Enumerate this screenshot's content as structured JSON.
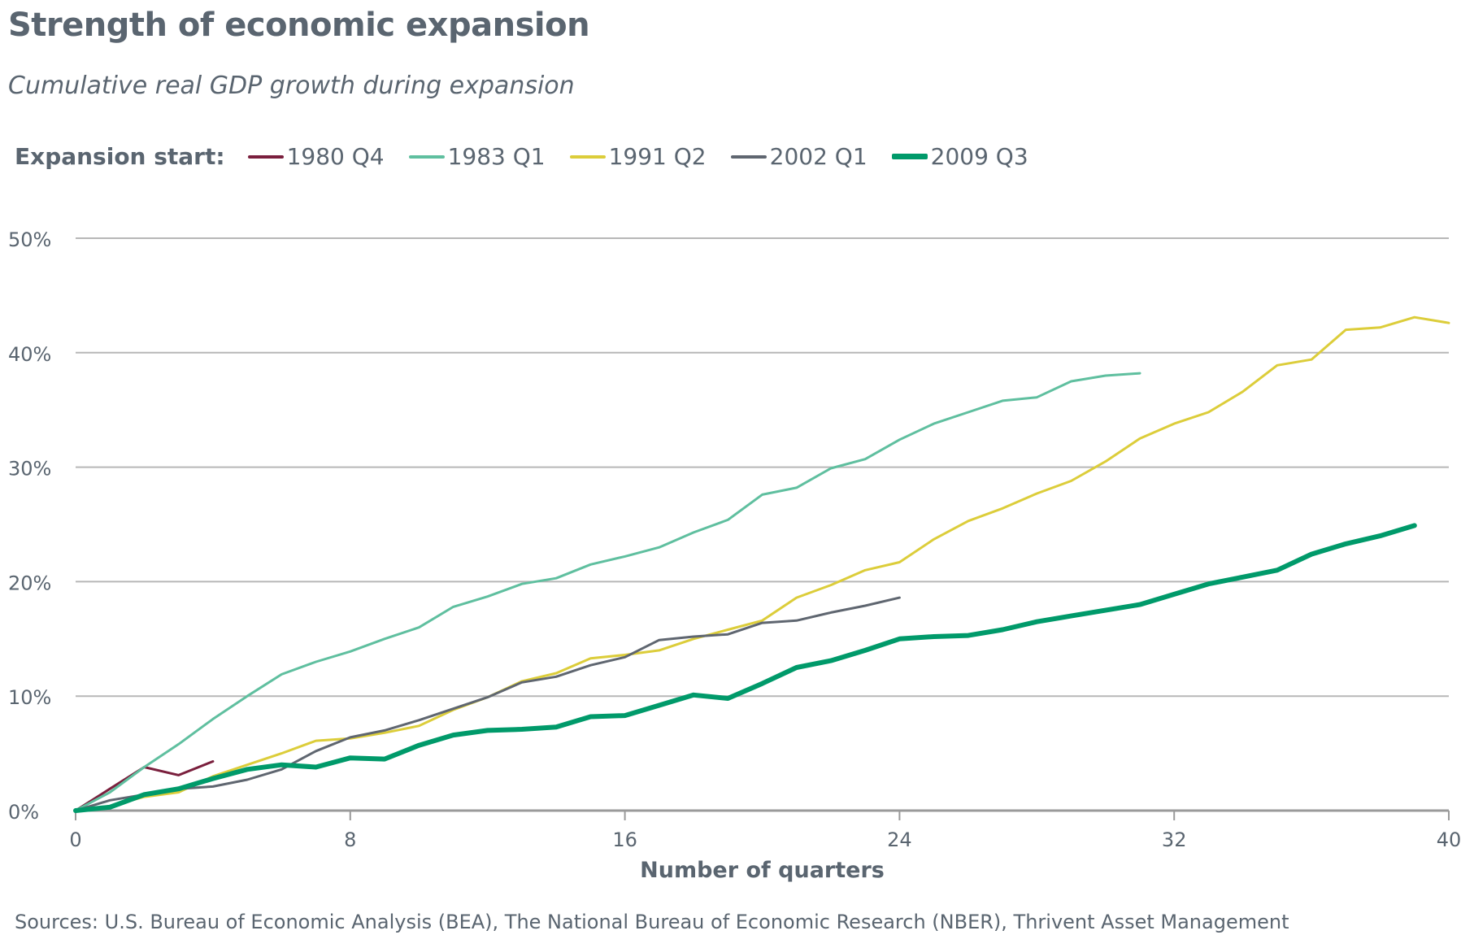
{
  "title": "Strength of economic expansion",
  "subtitle": "Cumulative real GDP growth during expansion",
  "legend_title": "Expansion start:",
  "source": "Sources: U.S. Bureau of Economic Analysis (BEA), The National Bureau of Economic Research (NBER), Thrivent Asset Management",
  "colors": {
    "grid": "#b7b7b7",
    "axis": "#9a9a9a",
    "text": "#5a6570"
  },
  "chart_data": {
    "type": "line",
    "xlabel": "Number of quarters",
    "ylabel": "",
    "xlim": [
      0,
      40
    ],
    "ylim": [
      0,
      50
    ],
    "x_ticks": [
      0,
      8,
      16,
      24,
      32,
      40
    ],
    "y_ticks": [
      0,
      10,
      20,
      30,
      40,
      50
    ],
    "y_tick_labels": [
      "0%",
      "10%",
      "20%",
      "30%",
      "40%",
      "50%"
    ],
    "grid": true,
    "legend_position": "top",
    "series": [
      {
        "name": "1980 Q4",
        "color": "#7a1f3d",
        "width": 3,
        "values": [
          [
            0,
            0
          ],
          [
            1,
            1.9
          ],
          [
            2,
            3.8
          ],
          [
            3,
            3.1
          ],
          [
            4,
            4.3
          ]
        ]
      },
      {
        "name": "1983 Q1",
        "color": "#5fbf9f",
        "width": 3,
        "values": [
          [
            0,
            0
          ],
          [
            1,
            1.6
          ],
          [
            2,
            3.8
          ],
          [
            3,
            5.8
          ],
          [
            4,
            8.0
          ],
          [
            5,
            10.0
          ],
          [
            6,
            11.9
          ],
          [
            7,
            13.0
          ],
          [
            8,
            13.9
          ],
          [
            9,
            15.0
          ],
          [
            10,
            16.0
          ],
          [
            11,
            17.8
          ],
          [
            12,
            18.7
          ],
          [
            13,
            19.8
          ],
          [
            14,
            20.3
          ],
          [
            15,
            21.5
          ],
          [
            16,
            22.2
          ],
          [
            17,
            23.0
          ],
          [
            18,
            24.3
          ],
          [
            19,
            25.4
          ],
          [
            20,
            27.6
          ],
          [
            21,
            28.2
          ],
          [
            22,
            29.9
          ],
          [
            23,
            30.7
          ],
          [
            24,
            32.4
          ],
          [
            25,
            33.8
          ],
          [
            26,
            34.8
          ],
          [
            27,
            35.8
          ],
          [
            28,
            36.1
          ],
          [
            29,
            37.5
          ],
          [
            30,
            38.0
          ],
          [
            31,
            38.2
          ]
        ]
      },
      {
        "name": "1991 Q2",
        "color": "#dccd3a",
        "width": 3,
        "values": [
          [
            0,
            0
          ],
          [
            1,
            0.4
          ],
          [
            2,
            1.2
          ],
          [
            3,
            1.6
          ],
          [
            4,
            3.0
          ],
          [
            5,
            4.0
          ],
          [
            6,
            5.0
          ],
          [
            7,
            6.1
          ],
          [
            8,
            6.3
          ],
          [
            9,
            6.8
          ],
          [
            10,
            7.4
          ],
          [
            11,
            8.8
          ],
          [
            12,
            9.9
          ],
          [
            13,
            11.3
          ],
          [
            14,
            12.0
          ],
          [
            15,
            13.3
          ],
          [
            16,
            13.6
          ],
          [
            17,
            14.0
          ],
          [
            18,
            15.0
          ],
          [
            19,
            15.8
          ],
          [
            20,
            16.6
          ],
          [
            21,
            18.6
          ],
          [
            22,
            19.7
          ],
          [
            23,
            21.0
          ],
          [
            24,
            21.7
          ],
          [
            25,
            23.7
          ],
          [
            26,
            25.3
          ],
          [
            27,
            26.4
          ],
          [
            28,
            27.7
          ],
          [
            29,
            28.8
          ],
          [
            30,
            30.5
          ],
          [
            31,
            32.5
          ],
          [
            32,
            33.8
          ],
          [
            33,
            34.8
          ],
          [
            34,
            36.6
          ],
          [
            35,
            38.9
          ],
          [
            36,
            39.4
          ],
          [
            37,
            42.0
          ],
          [
            38,
            42.2
          ],
          [
            39,
            43.1
          ],
          [
            40,
            42.6
          ]
        ]
      },
      {
        "name": "2002 Q1",
        "color": "#5f6670",
        "width": 3,
        "values": [
          [
            0,
            0
          ],
          [
            1,
            0.9
          ],
          [
            2,
            1.4
          ],
          [
            3,
            1.9
          ],
          [
            4,
            2.1
          ],
          [
            5,
            2.7
          ],
          [
            6,
            3.6
          ],
          [
            7,
            5.2
          ],
          [
            8,
            6.4
          ],
          [
            9,
            7.0
          ],
          [
            10,
            7.9
          ],
          [
            11,
            8.9
          ],
          [
            12,
            9.9
          ],
          [
            13,
            11.2
          ],
          [
            14,
            11.7
          ],
          [
            15,
            12.7
          ],
          [
            16,
            13.4
          ],
          [
            17,
            14.9
          ],
          [
            18,
            15.2
          ],
          [
            19,
            15.4
          ],
          [
            20,
            16.4
          ],
          [
            21,
            16.6
          ],
          [
            22,
            17.3
          ],
          [
            23,
            17.9
          ],
          [
            24,
            18.6
          ]
        ]
      },
      {
        "name": "2009 Q3",
        "color": "#009a6a",
        "width": 6,
        "values": [
          [
            0,
            0
          ],
          [
            1,
            0.3
          ],
          [
            2,
            1.4
          ],
          [
            3,
            1.9
          ],
          [
            4,
            2.8
          ],
          [
            5,
            3.6
          ],
          [
            6,
            4.0
          ],
          [
            7,
            3.8
          ],
          [
            8,
            4.6
          ],
          [
            9,
            4.5
          ],
          [
            10,
            5.7
          ],
          [
            11,
            6.6
          ],
          [
            12,
            7.0
          ],
          [
            13,
            7.1
          ],
          [
            14,
            7.3
          ],
          [
            15,
            8.2
          ],
          [
            16,
            8.3
          ],
          [
            17,
            9.2
          ],
          [
            18,
            10.1
          ],
          [
            19,
            9.8
          ],
          [
            20,
            11.1
          ],
          [
            21,
            12.5
          ],
          [
            22,
            13.1
          ],
          [
            23,
            14.0
          ],
          [
            24,
            15.0
          ],
          [
            25,
            15.2
          ],
          [
            26,
            15.3
          ],
          [
            27,
            15.8
          ],
          [
            28,
            16.5
          ],
          [
            29,
            17.0
          ],
          [
            30,
            17.5
          ],
          [
            31,
            18.0
          ],
          [
            32,
            18.9
          ],
          [
            33,
            19.8
          ],
          [
            34,
            20.4
          ],
          [
            35,
            21.0
          ],
          [
            36,
            22.4
          ],
          [
            37,
            23.3
          ],
          [
            38,
            24.0
          ],
          [
            39,
            24.9
          ]
        ]
      }
    ]
  }
}
